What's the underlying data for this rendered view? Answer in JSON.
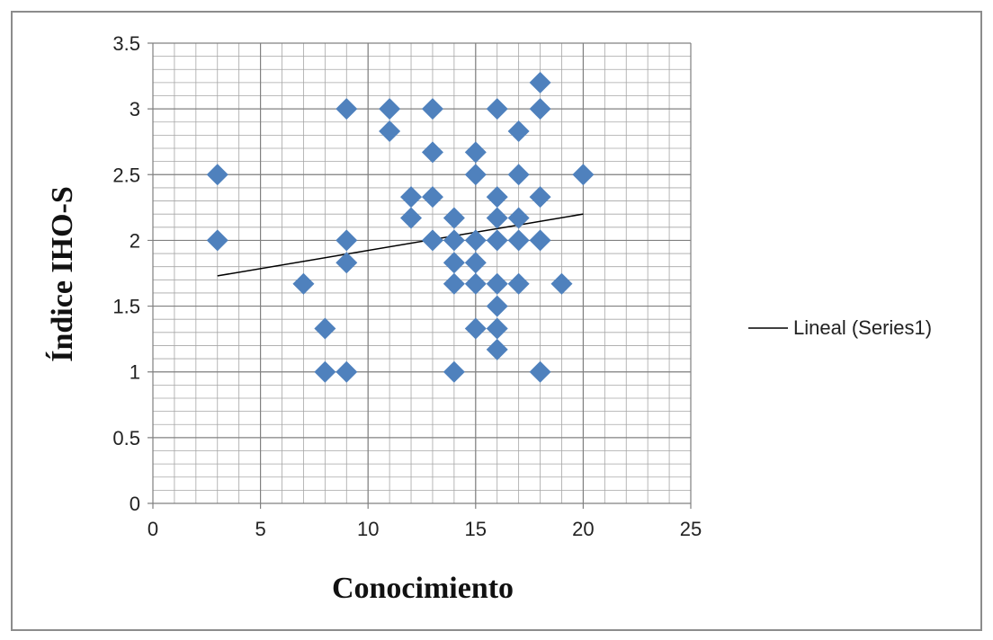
{
  "chart_data": {
    "type": "scatter",
    "title": "",
    "xlabel": "Conocimiento",
    "ylabel": "Índice IHO-S",
    "xlim": [
      0,
      25
    ],
    "ylim": [
      0,
      3.5
    ],
    "x_ticks": [
      0,
      5,
      10,
      15,
      20,
      25
    ],
    "y_ticks": [
      0,
      0.5,
      1,
      1.5,
      2,
      2.5,
      3,
      3.5
    ],
    "grid": true,
    "legend_position": "right",
    "colors": {
      "marker": "#4f81bd",
      "trendline": "#000000",
      "grid": "#a6a6a6"
    },
    "series": [
      {
        "points": [
          [
            3,
            2.5
          ],
          [
            3,
            2
          ],
          [
            7,
            1.67
          ],
          [
            8,
            1.33
          ],
          [
            8,
            1
          ],
          [
            9,
            3
          ],
          [
            9,
            2
          ],
          [
            9,
            1.83
          ],
          [
            9,
            1
          ],
          [
            11,
            3
          ],
          [
            11,
            2.83
          ],
          [
            12,
            2.33
          ],
          [
            12,
            2.17
          ],
          [
            13,
            3
          ],
          [
            13,
            2.67
          ],
          [
            13,
            2.33
          ],
          [
            13,
            2
          ],
          [
            14,
            2.17
          ],
          [
            14,
            2
          ],
          [
            14,
            1.83
          ],
          [
            14,
            1.67
          ],
          [
            14,
            1
          ],
          [
            15,
            2.67
          ],
          [
            15,
            2.5
          ],
          [
            15,
            2
          ],
          [
            15,
            1.83
          ],
          [
            15,
            1.67
          ],
          [
            15,
            1.33
          ],
          [
            16,
            3
          ],
          [
            16,
            2.33
          ],
          [
            16,
            2.17
          ],
          [
            16,
            2
          ],
          [
            16,
            1.67
          ],
          [
            16,
            1.5
          ],
          [
            16,
            1.33
          ],
          [
            16,
            1.17
          ],
          [
            17,
            2.83
          ],
          [
            17,
            2.5
          ],
          [
            17,
            2.17
          ],
          [
            17,
            2
          ],
          [
            17,
            1.67
          ],
          [
            18,
            3.2
          ],
          [
            18,
            3
          ],
          [
            18,
            2.33
          ],
          [
            18,
            2
          ],
          [
            18,
            1
          ],
          [
            19,
            1.67
          ],
          [
            20,
            2.5
          ]
        ]
      }
    ],
    "trendline": {
      "label": "Lineal (Series1)",
      "start": [
        3,
        1.73
      ],
      "end": [
        20,
        2.2
      ]
    }
  }
}
